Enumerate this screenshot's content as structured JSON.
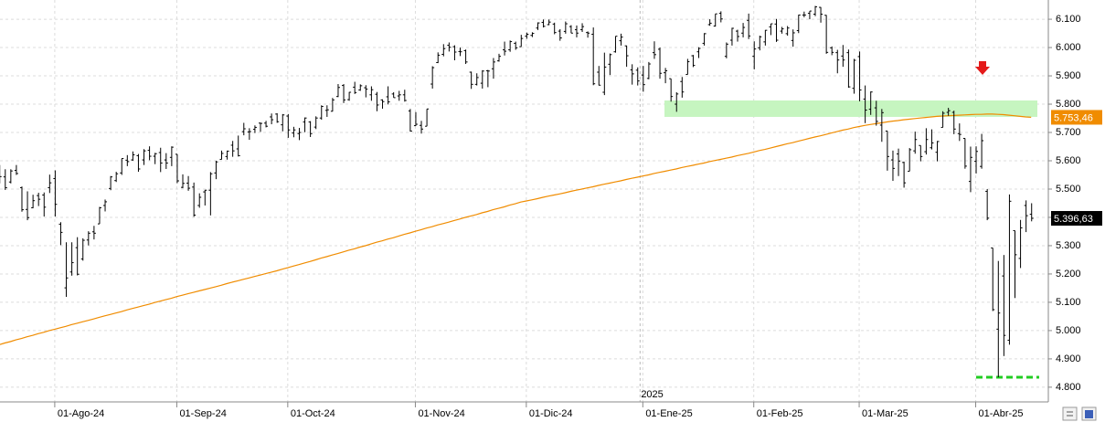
{
  "chart_data": {
    "type": "ohlc",
    "color": "#000000",
    "grid": true,
    "ylim": [
      4748,
      6168
    ],
    "yticks": [
      {
        "value": 4800,
        "label": "4.800"
      },
      {
        "value": 4900,
        "label": "4.900"
      },
      {
        "value": 5000,
        "label": "5.000"
      },
      {
        "value": 5100,
        "label": "5.100"
      },
      {
        "value": 5200,
        "label": "5.200"
      },
      {
        "value": 5300,
        "label": "5.300"
      },
      {
        "value": 5400,
        "label": "5.400"
      },
      {
        "value": 5500,
        "label": "5.500"
      },
      {
        "value": 5600,
        "label": "5.600"
      },
      {
        "value": 5700,
        "label": "5.700"
      },
      {
        "value": 5800,
        "label": "5.800"
      },
      {
        "value": 5900,
        "label": "5.900"
      },
      {
        "value": 6000,
        "label": "6.000"
      },
      {
        "value": 6100,
        "label": "6.100"
      }
    ],
    "year_label": "2025",
    "categories": [
      null,
      null,
      null,
      null,
      null,
      null,
      null,
      null,
      null,
      null,
      "01-Ago-24",
      null,
      null,
      null,
      null,
      null,
      null,
      null,
      null,
      null,
      null,
      null,
      null,
      null,
      null,
      null,
      null,
      null,
      null,
      null,
      null,
      null,
      "01-Sep-24",
      null,
      null,
      null,
      null,
      null,
      null,
      null,
      null,
      null,
      null,
      null,
      null,
      null,
      null,
      null,
      null,
      null,
      null,
      null,
      "01-Oct-24",
      null,
      null,
      null,
      null,
      null,
      null,
      null,
      null,
      null,
      null,
      null,
      null,
      null,
      null,
      null,
      null,
      null,
      null,
      null,
      null,
      null,
      null,
      "01-Nov-24",
      null,
      null,
      null,
      null,
      null,
      null,
      null,
      null,
      null,
      null,
      null,
      null,
      null,
      null,
      null,
      null,
      null,
      null,
      null,
      "01-Dic-24",
      null,
      null,
      null,
      null,
      null,
      null,
      null,
      null,
      null,
      null,
      null,
      null,
      null,
      null,
      null,
      null,
      null,
      null,
      null,
      null,
      "01-Ene-25",
      null,
      null,
      null,
      null,
      null,
      null,
      null,
      null,
      null,
      null,
      null,
      null,
      null,
      null,
      null,
      null,
      null,
      null,
      null,
      "01-Feb-25",
      null,
      null,
      null,
      null,
      null,
      null,
      null,
      null,
      null,
      null,
      null,
      null,
      null,
      null,
      null,
      null,
      null,
      null,
      "01-Mar-25",
      null,
      null,
      null,
      null,
      null,
      null,
      null,
      null,
      null,
      null,
      null,
      null,
      null,
      null,
      null,
      null,
      null,
      null,
      null,
      null,
      "01-Abr-25",
      null,
      null,
      null,
      null,
      null,
      null,
      null,
      null,
      null,
      null
    ],
    "bars": [
      [
        5560,
        5585,
        5520,
        5544
      ],
      [
        5543,
        5570,
        5497,
        5505
      ],
      [
        5525,
        5570,
        5520,
        5564
      ],
      [
        5566,
        5585,
        5550,
        5555
      ],
      [
        5505,
        5509,
        5420,
        5427
      ],
      [
        5428,
        5492,
        5390,
        5399
      ],
      [
        5434,
        5480,
        5432,
        5459
      ],
      [
        5477,
        5487,
        5440,
        5464
      ],
      [
        5479,
        5488,
        5403,
        5436
      ],
      [
        5505,
        5551,
        5486,
        5522
      ],
      [
        5537,
        5566,
        5403,
        5446
      ],
      [
        5376,
        5383,
        5302,
        5347
      ],
      [
        5151,
        5312,
        5119,
        5186
      ],
      [
        5207,
        5312,
        5194,
        5240
      ],
      [
        5293,
        5330,
        5195,
        5199
      ],
      [
        5253,
        5326,
        5247,
        5319
      ],
      [
        5320,
        5351,
        5301,
        5344
      ],
      [
        5349,
        5370,
        5322,
        5344
      ],
      [
        5377,
        5437,
        5377,
        5434
      ],
      [
        5442,
        5463,
        5421,
        5455
      ],
      [
        5502,
        5546,
        5496,
        5543
      ],
      [
        5530,
        5561,
        5525,
        5554
      ],
      [
        5557,
        5608,
        5550,
        5608
      ],
      [
        5602,
        5620,
        5581,
        5597
      ],
      [
        5603,
        5633,
        5600,
        5621
      ],
      [
        5618,
        5624,
        5561,
        5571
      ],
      [
        5603,
        5641,
        5585,
        5635
      ],
      [
        5637,
        5651,
        5602,
        5616
      ],
      [
        5616,
        5628,
        5588,
        5625
      ],
      [
        5629,
        5646,
        5560,
        5592
      ],
      [
        5603,
        5627,
        5571,
        5592
      ],
      [
        5612,
        5651,
        5581,
        5648
      ],
      [
        5623,
        5623,
        5521,
        5529
      ],
      [
        5506,
        5552,
        5503,
        5520
      ],
      [
        5521,
        5546,
        5494,
        5503
      ],
      [
        5507,
        5523,
        5402,
        5408
      ],
      [
        5442,
        5485,
        5434,
        5471
      ],
      [
        5490,
        5497,
        5442,
        5496
      ],
      [
        5496,
        5560,
        5407,
        5554
      ],
      [
        5557,
        5600,
        5535,
        5596
      ],
      [
        5605,
        5636,
        5605,
        5626
      ],
      [
        5615,
        5636,
        5604,
        5634
      ],
      [
        5655,
        5670,
        5614,
        5635
      ],
      [
        5642,
        5689,
        5615,
        5618
      ],
      [
        5703,
        5734,
        5690,
        5713
      ],
      [
        5702,
        5715,
        5674,
        5703
      ],
      [
        5711,
        5725,
        5698,
        5718
      ],
      [
        5733,
        5735,
        5702,
        5732
      ],
      [
        5733,
        5741,
        5718,
        5722
      ],
      [
        5755,
        5767,
        5729,
        5745
      ],
      [
        5765,
        5768,
        5734,
        5738
      ],
      [
        5727,
        5765,
        5704,
        5762
      ],
      [
        5758,
        5765,
        5681,
        5709
      ],
      [
        5698,
        5720,
        5683,
        5709
      ],
      [
        5696,
        5716,
        5673,
        5700
      ],
      [
        5737,
        5753,
        5701,
        5751
      ],
      [
        5737,
        5740,
        5684,
        5696
      ],
      [
        5719,
        5757,
        5712,
        5751
      ],
      [
        5751,
        5796,
        5745,
        5792
      ],
      [
        5778,
        5796,
        5755,
        5780
      ],
      [
        5775,
        5822,
        5774,
        5815
      ],
      [
        5827,
        5871,
        5825,
        5859
      ],
      [
        5866,
        5871,
        5804,
        5815
      ],
      [
        5816,
        5843,
        5812,
        5842
      ],
      [
        5860,
        5879,
        5836,
        5841
      ],
      [
        5850,
        5870,
        5847,
        5865
      ],
      [
        5858,
        5867,
        5824,
        5853
      ],
      [
        5833,
        5863,
        5812,
        5851
      ],
      [
        5835,
        5843,
        5775,
        5797
      ],
      [
        5815,
        5817,
        5784,
        5809
      ],
      [
        5826,
        5863,
        5799,
        5808
      ],
      [
        5836,
        5842,
        5823,
        5823
      ],
      [
        5829,
        5847,
        5812,
        5833
      ],
      [
        5833,
        5851,
        5809,
        5813
      ],
      [
        5776,
        5783,
        5703,
        5705
      ],
      [
        5724,
        5772,
        5723,
        5729
      ],
      [
        5725,
        5741,
        5696,
        5712
      ],
      [
        5722,
        5783,
        5722,
        5783
      ],
      [
        5871,
        5934,
        5855,
        5929
      ],
      [
        5947,
        5983,
        5945,
        5973
      ],
      [
        5976,
        6012,
        5969,
        5996
      ],
      [
        6008,
        6018,
        5986,
        6001
      ],
      [
        6003,
        6008,
        5955,
        5984
      ],
      [
        5986,
        6000,
        5970,
        5985
      ],
      [
        5989,
        5993,
        5942,
        5949
      ],
      [
        5913,
        5915,
        5854,
        5870
      ],
      [
        5870,
        5909,
        5866,
        5894
      ],
      [
        5874,
        5920,
        5855,
        5917
      ],
      [
        5918,
        5921,
        5860,
        5917
      ],
      [
        5925,
        5963,
        5890,
        5949
      ],
      [
        5953,
        5978,
        5950,
        5969
      ],
      [
        5992,
        6021,
        5972,
        5987
      ],
      [
        5992,
        6025,
        5985,
        6021
      ],
      [
        6015,
        6021,
        5992,
        5999
      ],
      [
        6003,
        6045,
        6003,
        6032
      ],
      [
        6040,
        6053,
        6031,
        6047
      ],
      [
        6043,
        6054,
        6037,
        6050
      ],
      [
        6069,
        6089,
        6062,
        6087
      ],
      [
        6089,
        6099,
        6071,
        6075
      ],
      [
        6081,
        6099,
        6079,
        6090
      ],
      [
        6083,
        6088,
        6047,
        6053
      ],
      [
        6058,
        6065,
        6024,
        6034
      ],
      [
        6057,
        6092,
        6049,
        6084
      ],
      [
        6074,
        6079,
        6051,
        6051
      ],
      [
        6063,
        6078,
        6036,
        6051
      ],
      [
        6063,
        6086,
        6055,
        6074
      ],
      [
        6053,
        6057,
        6035,
        6051
      ],
      [
        6047,
        6071,
        5867,
        5872
      ],
      [
        5913,
        5935,
        5866,
        5867
      ],
      [
        5842,
        5982,
        5832,
        5931
      ],
      [
        5941,
        5979,
        5903,
        5975
      ],
      [
        5985,
        6040,
        5982,
        6040
      ],
      [
        6024,
        6049,
        6007,
        6037
      ],
      [
        6006,
        6007,
        5932,
        5971
      ],
      [
        5921,
        5941,
        5869,
        5907
      ],
      [
        5920,
        5930,
        5866,
        5882
      ],
      [
        5903,
        5935,
        5844,
        5869
      ],
      [
        5891,
        5949,
        5888,
        5942
      ],
      [
        5982,
        6022,
        5960,
        5975
      ],
      [
        5994,
        6000,
        5890,
        5909
      ],
      [
        5911,
        5928,
        5874,
        5918
      ],
      [
        5890,
        5890,
        5809,
        5827
      ],
      [
        5800,
        5842,
        5773,
        5836
      ],
      [
        5880,
        5896,
        5823,
        5843
      ],
      [
        5905,
        5960,
        5905,
        5950
      ],
      [
        5971,
        5974,
        5931,
        5937
      ],
      [
        5985,
        6001,
        5963,
        5997
      ],
      [
        6015,
        6051,
        6007,
        6049
      ],
      [
        6081,
        6100,
        6077,
        6086
      ],
      [
        6076,
        6119,
        6074,
        6119
      ],
      [
        6121,
        6128,
        6089,
        6101
      ],
      [
        5969,
        6018,
        5962,
        6012
      ],
      [
        6026,
        6070,
        6007,
        6068
      ],
      [
        6058,
        6063,
        6021,
        6039
      ],
      [
        6051,
        6087,
        6036,
        6071
      ],
      [
        6096,
        6120,
        6030,
        6041
      ],
      [
        5969,
        6022,
        5923,
        5995
      ],
      [
        5999,
        6042,
        5990,
        6038
      ],
      [
        6020,
        6062,
        6007,
        6061
      ],
      [
        6073,
        6084,
        6044,
        6084
      ],
      [
        6083,
        6101,
        6020,
        6026
      ],
      [
        6058,
        6073,
        6049,
        6066
      ],
      [
        6049,
        6076,
        6042,
        6069
      ],
      [
        6025,
        6064,
        6003,
        6052
      ],
      [
        6060,
        6116,
        6051,
        6115
      ],
      [
        6115,
        6127,
        6107,
        6115
      ],
      [
        6121,
        6129,
        6100,
        6129
      ],
      [
        6118,
        6147,
        6111,
        6144
      ],
      [
        6142,
        6143,
        6088,
        6118
      ],
      [
        6114,
        6115,
        5978,
        5983
      ],
      [
        5999,
        6004,
        5973,
        5983
      ],
      [
        5982,
        5992,
        5909,
        5956
      ],
      [
        5970,
        6009,
        5932,
        5956
      ],
      [
        5982,
        5993,
        5858,
        5861
      ],
      [
        5856,
        5960,
        5837,
        5955
      ],
      [
        5968,
        5986,
        5810,
        5850
      ],
      [
        5818,
        5866,
        5733,
        5779
      ],
      [
        5782,
        5845,
        5762,
        5843
      ],
      [
        5787,
        5812,
        5724,
        5739
      ],
      [
        5726,
        5783,
        5667,
        5770
      ],
      [
        5705,
        5705,
        5565,
        5615
      ],
      [
        5603,
        5636,
        5529,
        5573
      ],
      [
        5624,
        5643,
        5546,
        5599
      ],
      [
        5594,
        5597,
        5505,
        5522
      ],
      [
        5563,
        5645,
        5563,
        5639
      ],
      [
        5635,
        5703,
        5625,
        5675
      ],
      [
        5654,
        5654,
        5598,
        5615
      ],
      [
        5632,
        5715,
        5622,
        5675
      ],
      [
        5646,
        5711,
        5640,
        5663
      ],
      [
        5630,
        5670,
        5598,
        5668
      ],
      [
        5718,
        5775,
        5718,
        5768
      ],
      [
        5771,
        5787,
        5759,
        5777
      ],
      [
        5771,
        5777,
        5694,
        5712
      ],
      [
        5696,
        5732,
        5670,
        5693
      ],
      [
        5679,
        5679,
        5572,
        5581
      ],
      [
        5527,
        5650,
        5489,
        5612
      ],
      [
        5598,
        5651,
        5555,
        5633
      ],
      [
        5580,
        5695,
        5572,
        5671
      ],
      [
        5492,
        5500,
        5390,
        5397
      ],
      [
        5292,
        5292,
        5069,
        5074
      ],
      [
        5005,
        5246,
        4835,
        5062
      ],
      [
        5193,
        5267,
        4910,
        4983
      ],
      [
        4966,
        5481,
        4950,
        5457
      ],
      [
        5353,
        5353,
        5115,
        5268
      ],
      [
        5255,
        5391,
        5221,
        5363
      ],
      [
        5442,
        5460,
        5348,
        5406
      ],
      [
        5411,
        5450,
        5386,
        5396.63
      ]
    ],
    "last_close_label": {
      "value": 5396.63,
      "label": "5.396,63"
    },
    "ma": {
      "color": "#f08c00",
      "values": [
        4950,
        4956,
        4961,
        4967,
        4972,
        4978,
        4983,
        4989,
        4994,
        5000,
        5005,
        5010,
        5015,
        5021,
        5026,
        5031,
        5036,
        5041,
        5047,
        5052,
        5057,
        5062,
        5067,
        5073,
        5078,
        5083,
        5088,
        5093,
        5099,
        5104,
        5109,
        5114,
        5120,
        5125,
        5130,
        5135,
        5140,
        5145,
        5150,
        5155,
        5160,
        5166,
        5171,
        5176,
        5181,
        5186,
        5191,
        5196,
        5201,
        5206,
        5211,
        5217,
        5222,
        5228,
        5233,
        5239,
        5244,
        5250,
        5256,
        5261,
        5267,
        5272,
        5278,
        5284,
        5289,
        5295,
        5300,
        5306,
        5312,
        5317,
        5323,
        5328,
        5334,
        5340,
        5345,
        5351,
        5356,
        5362,
        5367,
        5373,
        5378,
        5383,
        5389,
        5394,
        5400,
        5405,
        5410,
        5416,
        5421,
        5427,
        5432,
        5437,
        5443,
        5448,
        5454,
        5458,
        5462,
        5466,
        5471,
        5475,
        5479,
        5483,
        5487,
        5492,
        5496,
        5500,
        5504,
        5508,
        5513,
        5517,
        5521,
        5525,
        5529,
        5534,
        5538,
        5542,
        5546,
        5550,
        5555,
        5559,
        5563,
        5567,
        5571,
        5576,
        5580,
        5584,
        5588,
        5592,
        5597,
        5601,
        5605,
        5609,
        5613,
        5618,
        5622,
        5626,
        5631,
        5636,
        5640,
        5645,
        5650,
        5655,
        5660,
        5664,
        5669,
        5674,
        5679,
        5684,
        5688,
        5693,
        5698,
        5703,
        5708,
        5712,
        5717,
        5721,
        5725,
        5728,
        5731,
        5734,
        5737,
        5740,
        5742,
        5745,
        5747,
        5749,
        5751,
        5753,
        5755,
        5757,
        5758,
        5759,
        5760,
        5761,
        5762,
        5763,
        5764,
        5764,
        5765,
        5765,
        5764,
        5763,
        5761,
        5759,
        5757,
        5755,
        5753.46
      ],
      "last_label": {
        "value": 5753.46,
        "label": "5.753,46"
      }
    },
    "zone": [
      5755,
      5813
    ],
    "zone_color": "#c6f5c0",
    "support_level": 4835,
    "support_color": "#22cc22"
  }
}
